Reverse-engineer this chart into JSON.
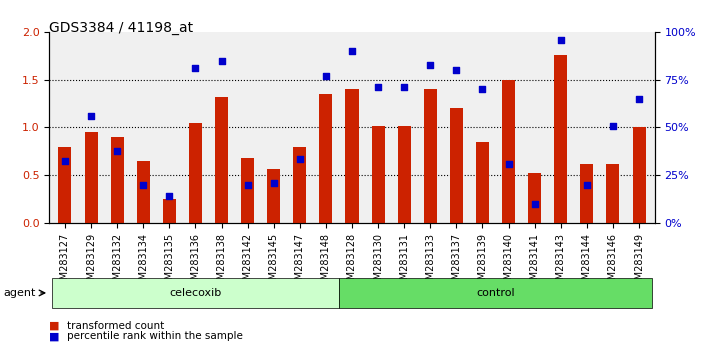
{
  "title": "GDS3384 / 41198_at",
  "samples": [
    "GSM283127",
    "GSM283129",
    "GSM283132",
    "GSM283134",
    "GSM283135",
    "GSM283136",
    "GSM283138",
    "GSM283142",
    "GSM283145",
    "GSM283147",
    "GSM283148",
    "GSM283128",
    "GSM283130",
    "GSM283131",
    "GSM283133",
    "GSM283137",
    "GSM283139",
    "GSM283140",
    "GSM283141",
    "GSM283143",
    "GSM283144",
    "GSM283146",
    "GSM283149"
  ],
  "bar_values": [
    0.8,
    0.95,
    0.9,
    0.65,
    0.25,
    1.05,
    1.32,
    0.68,
    0.56,
    0.8,
    1.35,
    1.4,
    1.02,
    1.02,
    1.4,
    1.2,
    0.85,
    1.5,
    0.52,
    1.76,
    0.62,
    0.62,
    1.0
  ],
  "dot_values": [
    32.5,
    56.0,
    37.5,
    20.0,
    14.0,
    81.0,
    85.0,
    20.0,
    21.0,
    33.5,
    77.0,
    90.0,
    71.0,
    71.0,
    82.5,
    80.0,
    70.0,
    31.0,
    10.0,
    96.0,
    20.0,
    51.0,
    65.0
  ],
  "celecoxib_count": 11,
  "control_count": 12,
  "bar_color": "#CC2200",
  "dot_color": "#0000CC",
  "ylim_left": [
    0,
    2
  ],
  "ylim_right": [
    0,
    100
  ],
  "yticks_left": [
    0,
    0.5,
    1.0,
    1.5,
    2.0
  ],
  "yticks_right": [
    0,
    25,
    50,
    75,
    100
  ],
  "hlines": [
    0.5,
    1.0,
    1.5
  ],
  "agent_label": "agent",
  "celecoxib_label": "celecoxib",
  "control_label": "control",
  "legend_bar_label": "transformed count",
  "legend_dot_label": "percentile rank within the sample",
  "bg_plot": "#f0f0f0",
  "bg_celecoxib": "#ccffcc",
  "bg_control": "#66dd66",
  "bar_width": 0.5
}
